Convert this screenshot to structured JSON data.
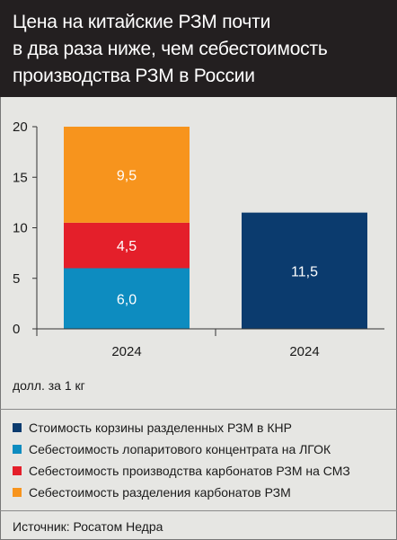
{
  "title": "Цена на китайские РЗМ почти в два раза ниже, чем себестоимость производства РЗМ в России",
  "title_lines": [
    "Цена на китайские РЗМ почти",
    "в два раза ниже, чем себестоимость",
    "производства РЗМ в России"
  ],
  "unit_label": "долл. за 1 кг",
  "source": "Источник: Росатом Недра",
  "colors": {
    "navy": "#0b3b6e",
    "blue": "#0d8cc0",
    "red": "#e41f2a",
    "orange": "#f7941d",
    "header_bg": "#231f20"
  },
  "legend": [
    {
      "label": "Стоимость корзины разделенных РЗМ в КНР",
      "color": "#0b3b6e"
    },
    {
      "label": "Себестоимость лопаритового концентрата на ЛГОК",
      "color": "#0d8cc0"
    },
    {
      "label": "Себестоимость производства карбонатов РЗМ на СМЗ",
      "color": "#e41f2a"
    },
    {
      "label": "Себестоимость разделения карбонатов РЗМ",
      "color": "#f7941d"
    }
  ],
  "chart_data": {
    "type": "bar",
    "stacked": true,
    "title": "Цена на китайские РЗМ почти в два раза ниже, чем себестоимость производства РЗМ в России",
    "xlabel": "",
    "ylabel": "",
    "unit": "долл. за 1 кг",
    "ylim": [
      0,
      20
    ],
    "yticks": [
      0,
      5,
      10,
      15,
      20
    ],
    "ytick_labels": [
      "0",
      "5",
      "10",
      "15",
      "20"
    ],
    "grid": false,
    "legend_position": "bottom",
    "categories": [
      "2024",
      "2024"
    ],
    "series": [
      {
        "name": "Себестоимость лопаритового концентрата на ЛГОК",
        "values": [
          6.0,
          null
        ],
        "labels": [
          "6,0",
          null
        ],
        "color": "#0d8cc0"
      },
      {
        "name": "Себестоимость производства карбонатов РЗМ на СМЗ",
        "values": [
          4.5,
          null
        ],
        "labels": [
          "4,5",
          null
        ],
        "color": "#e41f2a"
      },
      {
        "name": "Себестоимость разделения карбонатов РЗМ",
        "values": [
          9.5,
          null
        ],
        "labels": [
          "9,5",
          null
        ],
        "color": "#f7941d"
      },
      {
        "name": "Стоимость корзины разделенных РЗМ в КНР",
        "values": [
          null,
          11.5
        ],
        "labels": [
          null,
          "11,5"
        ],
        "color": "#0b3b6e"
      }
    ]
  }
}
